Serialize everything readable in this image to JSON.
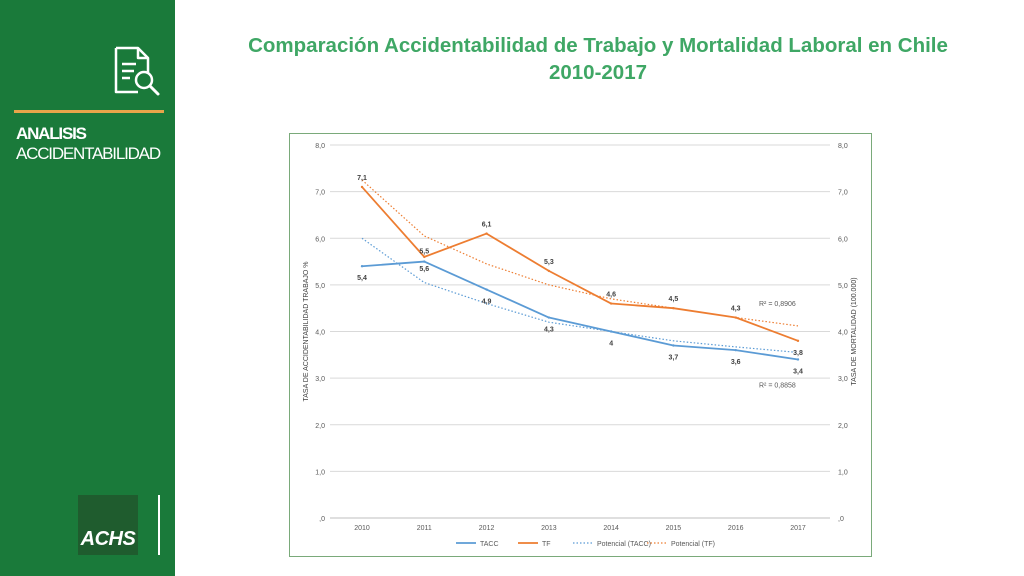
{
  "sidebar": {
    "section_title": "ANALISIS",
    "section_subtitle": "ACCIDENTABILIDAD",
    "logo_text": "ACHS"
  },
  "header": {
    "title_line1": "Comparación Accidentabilidad de Trabajo y Mortalidad Laboral en Chile",
    "title_line2": "2010-2017"
  },
  "colors": {
    "sidebar_green": "#1a7a3a",
    "title_green": "#3fa765",
    "accent_orange": "#e8a54a",
    "tacc_blue": "#5b9bd5",
    "tf_orange": "#ed7d31"
  },
  "chart_data": {
    "type": "line",
    "categories": [
      "2010",
      "2011",
      "2012",
      "2013",
      "2014",
      "2015",
      "2016",
      "2017"
    ],
    "ylabel": "TASA DE ACCIDENTABILIDAD TRABAJO %",
    "y2label": "TASA DE MORTALIDAD (100.000)",
    "ylim": [
      0,
      8
    ],
    "y2lim": [
      0,
      8
    ],
    "yticks": [
      ",0",
      "1,0",
      "2,0",
      "3,0",
      "4,0",
      "5,0",
      "6,0",
      "7,0",
      "8,0"
    ],
    "grid": true,
    "series": [
      {
        "name": "TACC",
        "axis": "left",
        "color": "#5b9bd5",
        "values": [
          5.4,
          5.5,
          4.9,
          4.3,
          4.0,
          3.7,
          3.6,
          3.4
        ],
        "labels": [
          "5,4",
          "5,5",
          "4,9",
          "4,3",
          "4",
          "3,7",
          "3,6",
          "3,4"
        ]
      },
      {
        "name": "TF",
        "axis": "right",
        "color": "#ed7d31",
        "values": [
          7.1,
          5.6,
          6.1,
          5.3,
          4.6,
          4.5,
          4.3,
          3.8
        ],
        "labels": [
          "7,1",
          "5,6",
          "6,1",
          "5,3",
          "4,6",
          "4,5",
          "4,3",
          "3,8"
        ]
      }
    ],
    "trendlines": [
      {
        "name": "Potencial (TACC)",
        "color": "#5b9bd5",
        "values": [
          6.0,
          5.05,
          4.6,
          4.2,
          4.0,
          3.8,
          3.67,
          3.55
        ]
      },
      {
        "name": "Potencial (TF)",
        "color": "#ed7d31",
        "values": [
          7.25,
          6.05,
          5.45,
          5.0,
          4.7,
          4.5,
          4.3,
          4.12
        ]
      }
    ],
    "annotations": [
      {
        "text": "R² = 0,8906"
      },
      {
        "text": "R² = 0,8858"
      }
    ],
    "legend": [
      "TACC",
      "TF",
      "Potencial (TACC)",
      "Potencial (TF)"
    ],
    "legend_position": "bottom"
  }
}
